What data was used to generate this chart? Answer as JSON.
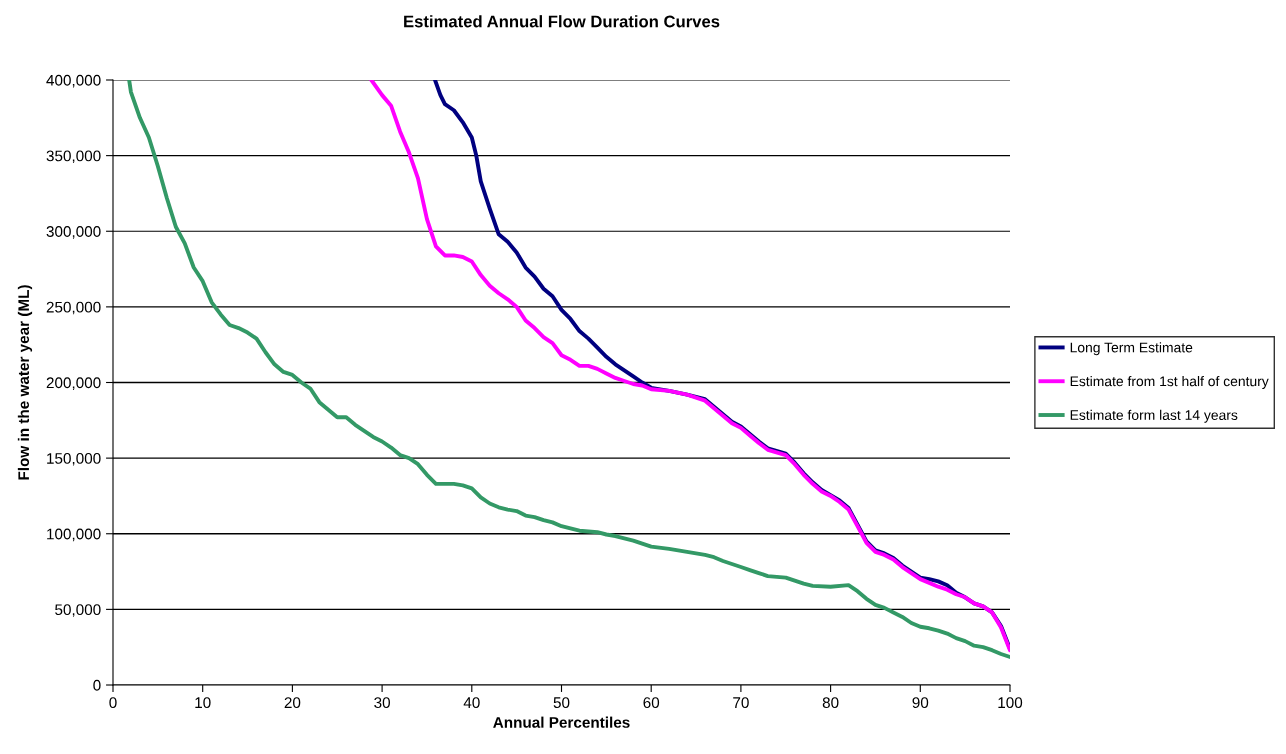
{
  "chart_data": {
    "type": "line",
    "title": "Estimated Annual Flow Duration Curves",
    "xlabel": "Annual Percentiles",
    "ylabel": "Flow in the water year (ML)",
    "xlim": [
      0,
      100
    ],
    "xticks": [
      0,
      10,
      20,
      30,
      40,
      50,
      60,
      70,
      80,
      90,
      100
    ],
    "ylim": [
      0,
      400000
    ],
    "yticks": [
      {
        "value": 0,
        "label": "0"
      },
      {
        "value": 50000,
        "label": "50,000"
      },
      {
        "value": 100000,
        "label": "100,000"
      },
      {
        "value": 150000,
        "label": "150,000"
      },
      {
        "value": 200000,
        "label": "200,000"
      },
      {
        "value": 250000,
        "label": "250,000"
      },
      {
        "value": 300000,
        "label": "300,000"
      },
      {
        "value": 350000,
        "label": "350,000"
      },
      {
        "value": 400000,
        "label": "400,000"
      }
    ],
    "grid": "y",
    "legend": "right",
    "marker": "none",
    "line_style": "solid",
    "series": [
      {
        "name": "Long Term Estimate",
        "color": "#000080",
        "x": [
          35.9,
          36.5,
          37,
          38,
          39,
          40,
          40.5,
          41,
          42,
          43,
          44,
          45,
          46,
          47,
          48,
          49,
          50,
          51,
          52,
          53,
          54,
          55,
          56,
          57,
          58,
          59,
          60,
          62,
          64,
          66,
          67,
          68,
          69,
          70,
          71,
          72,
          73,
          75,
          76,
          77,
          78,
          79,
          80,
          81,
          82,
          83,
          84,
          85,
          86,
          87,
          88,
          89,
          90,
          91,
          92,
          93,
          94,
          95,
          96,
          97,
          98,
          99,
          100
        ],
        "values": [
          400000,
          390000,
          384000,
          380000,
          372000,
          362000,
          350000,
          333000,
          315000,
          298000,
          293000,
          286000,
          276000,
          270000,
          262000,
          257000,
          248000,
          242000,
          234000,
          229000,
          223000,
          217000,
          212000,
          208000,
          204000,
          200000,
          196500,
          194500,
          192000,
          189000,
          184000,
          179000,
          174000,
          171000,
          166000,
          161000,
          156500,
          153000,
          147000,
          140000,
          134000,
          129000,
          125500,
          122000,
          117000,
          106000,
          95000,
          89000,
          87000,
          84000,
          79000,
          75000,
          71000,
          70000,
          68500,
          66000,
          61000,
          58000,
          54000,
          52000,
          48000,
          39000,
          24000
        ]
      },
      {
        "name": "Estimate from 1st half of century",
        "color": "#ff00ff",
        "x": [
          28.8,
          30,
          31,
          32,
          33,
          34,
          35,
          36,
          37,
          38,
          39,
          40,
          41,
          42,
          43,
          44,
          45,
          46,
          47,
          48,
          49,
          50,
          51,
          52,
          53,
          54,
          55,
          56,
          57,
          58,
          59,
          60,
          62,
          64,
          66,
          67,
          68,
          69,
          70,
          71,
          72,
          73,
          75,
          76,
          77,
          78,
          79,
          80,
          81,
          82,
          83,
          84,
          85,
          86,
          87,
          88,
          89,
          90,
          91,
          92,
          93,
          94,
          95,
          96,
          97,
          98,
          99,
          100
        ],
        "values": [
          400000,
          390000,
          383000,
          366000,
          352000,
          335000,
          308000,
          290000,
          284000,
          284000,
          283000,
          280000,
          271000,
          264000,
          259000,
          255000,
          250000,
          241000,
          236000,
          230000,
          226000,
          218000,
          215000,
          211000,
          211000,
          209000,
          206000,
          203000,
          201000,
          199000,
          198000,
          195500,
          194500,
          192000,
          188000,
          183000,
          178000,
          173000,
          170000,
          165000,
          160000,
          155500,
          152000,
          146000,
          139000,
          133000,
          128000,
          125000,
          121000,
          116000,
          105000,
          94000,
          88000,
          86000,
          83000,
          78000,
          74000,
          70000,
          67500,
          65000,
          63000,
          60000,
          58000,
          54000,
          52000,
          48000,
          38000,
          23000
        ]
      },
      {
        "name": "Estimate form last 14 years",
        "color": "#339966",
        "x": [
          1.8,
          2,
          3,
          4,
          5,
          6,
          7,
          8,
          9,
          10,
          11,
          12,
          13,
          14,
          15,
          16,
          17,
          18,
          19,
          20,
          21,
          22,
          23,
          24,
          25,
          26,
          27,
          28,
          29,
          30,
          31,
          32,
          33,
          34,
          35,
          36,
          37,
          38,
          39,
          40,
          41,
          42,
          43,
          44,
          45,
          46,
          47,
          48,
          49,
          50,
          51,
          52,
          53,
          54,
          55,
          56,
          57,
          58,
          59,
          60,
          62,
          64,
          66,
          67,
          68,
          70,
          71,
          72,
          73,
          75,
          76,
          77,
          78,
          80,
          82,
          83,
          84,
          85,
          86,
          87,
          88,
          89,
          90,
          91,
          92,
          93,
          94,
          95,
          96,
          97,
          98,
          99,
          100
        ],
        "values": [
          400000,
          392000,
          375000,
          362000,
          343000,
          322000,
          303000,
          292000,
          276000,
          267000,
          253000,
          245000,
          238000,
          236000,
          233000,
          229000,
          220000,
          212000,
          207000,
          205000,
          200000,
          196000,
          187000,
          182000,
          177000,
          177000,
          172000,
          168000,
          164000,
          161000,
          157000,
          152000,
          150000,
          146000,
          139000,
          133000,
          133000,
          133000,
          132000,
          130000,
          124000,
          120000,
          117500,
          116000,
          115000,
          112000,
          111000,
          109000,
          107500,
          105000,
          103500,
          102000,
          101500,
          101000,
          99500,
          98500,
          97000,
          95500,
          93500,
          91500,
          90000,
          88000,
          86000,
          84500,
          82000,
          78000,
          76000,
          74000,
          72000,
          71000,
          69000,
          67000,
          65500,
          65000,
          66000,
          62000,
          57000,
          53000,
          51000,
          48000,
          45000,
          41000,
          38500,
          37500,
          36000,
          34000,
          31000,
          29000,
          26000,
          25000,
          23000,
          20500,
          18500
        ]
      }
    ]
  }
}
